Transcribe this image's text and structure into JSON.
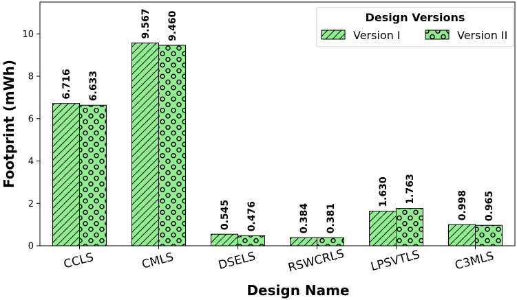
{
  "chart_data": {
    "type": "bar",
    "title": "",
    "xlabel": "Design Name",
    "ylabel": "Footprint (mWh)",
    "categories": [
      "CCLS",
      "CMLS",
      "DSELS",
      "RSWCRLS",
      "LPSVTLS",
      "C3MLS"
    ],
    "series": [
      {
        "name": "Version I",
        "values": [
          6.716,
          9.567,
          0.545,
          0.384,
          1.63,
          0.998
        ],
        "labels": [
          "6.716",
          "9.567",
          "0.545",
          "0.384",
          "1.630",
          "0.998"
        ],
        "color": "#90ee90",
        "pattern": "hatch"
      },
      {
        "name": "Version II",
        "values": [
          6.633,
          9.46,
          0.476,
          0.381,
          1.763,
          0.965
        ],
        "labels": [
          "6.633",
          "9.460",
          "0.476",
          "0.381",
          "1.763",
          "0.965"
        ],
        "color": "#90ee90",
        "pattern": "circles"
      }
    ],
    "ylim": [
      0,
      11.5
    ],
    "yticks": [
      0,
      2,
      4,
      6,
      8,
      10
    ],
    "grid": false,
    "legend": {
      "title": "Design Versions",
      "placement": "top-right"
    }
  }
}
